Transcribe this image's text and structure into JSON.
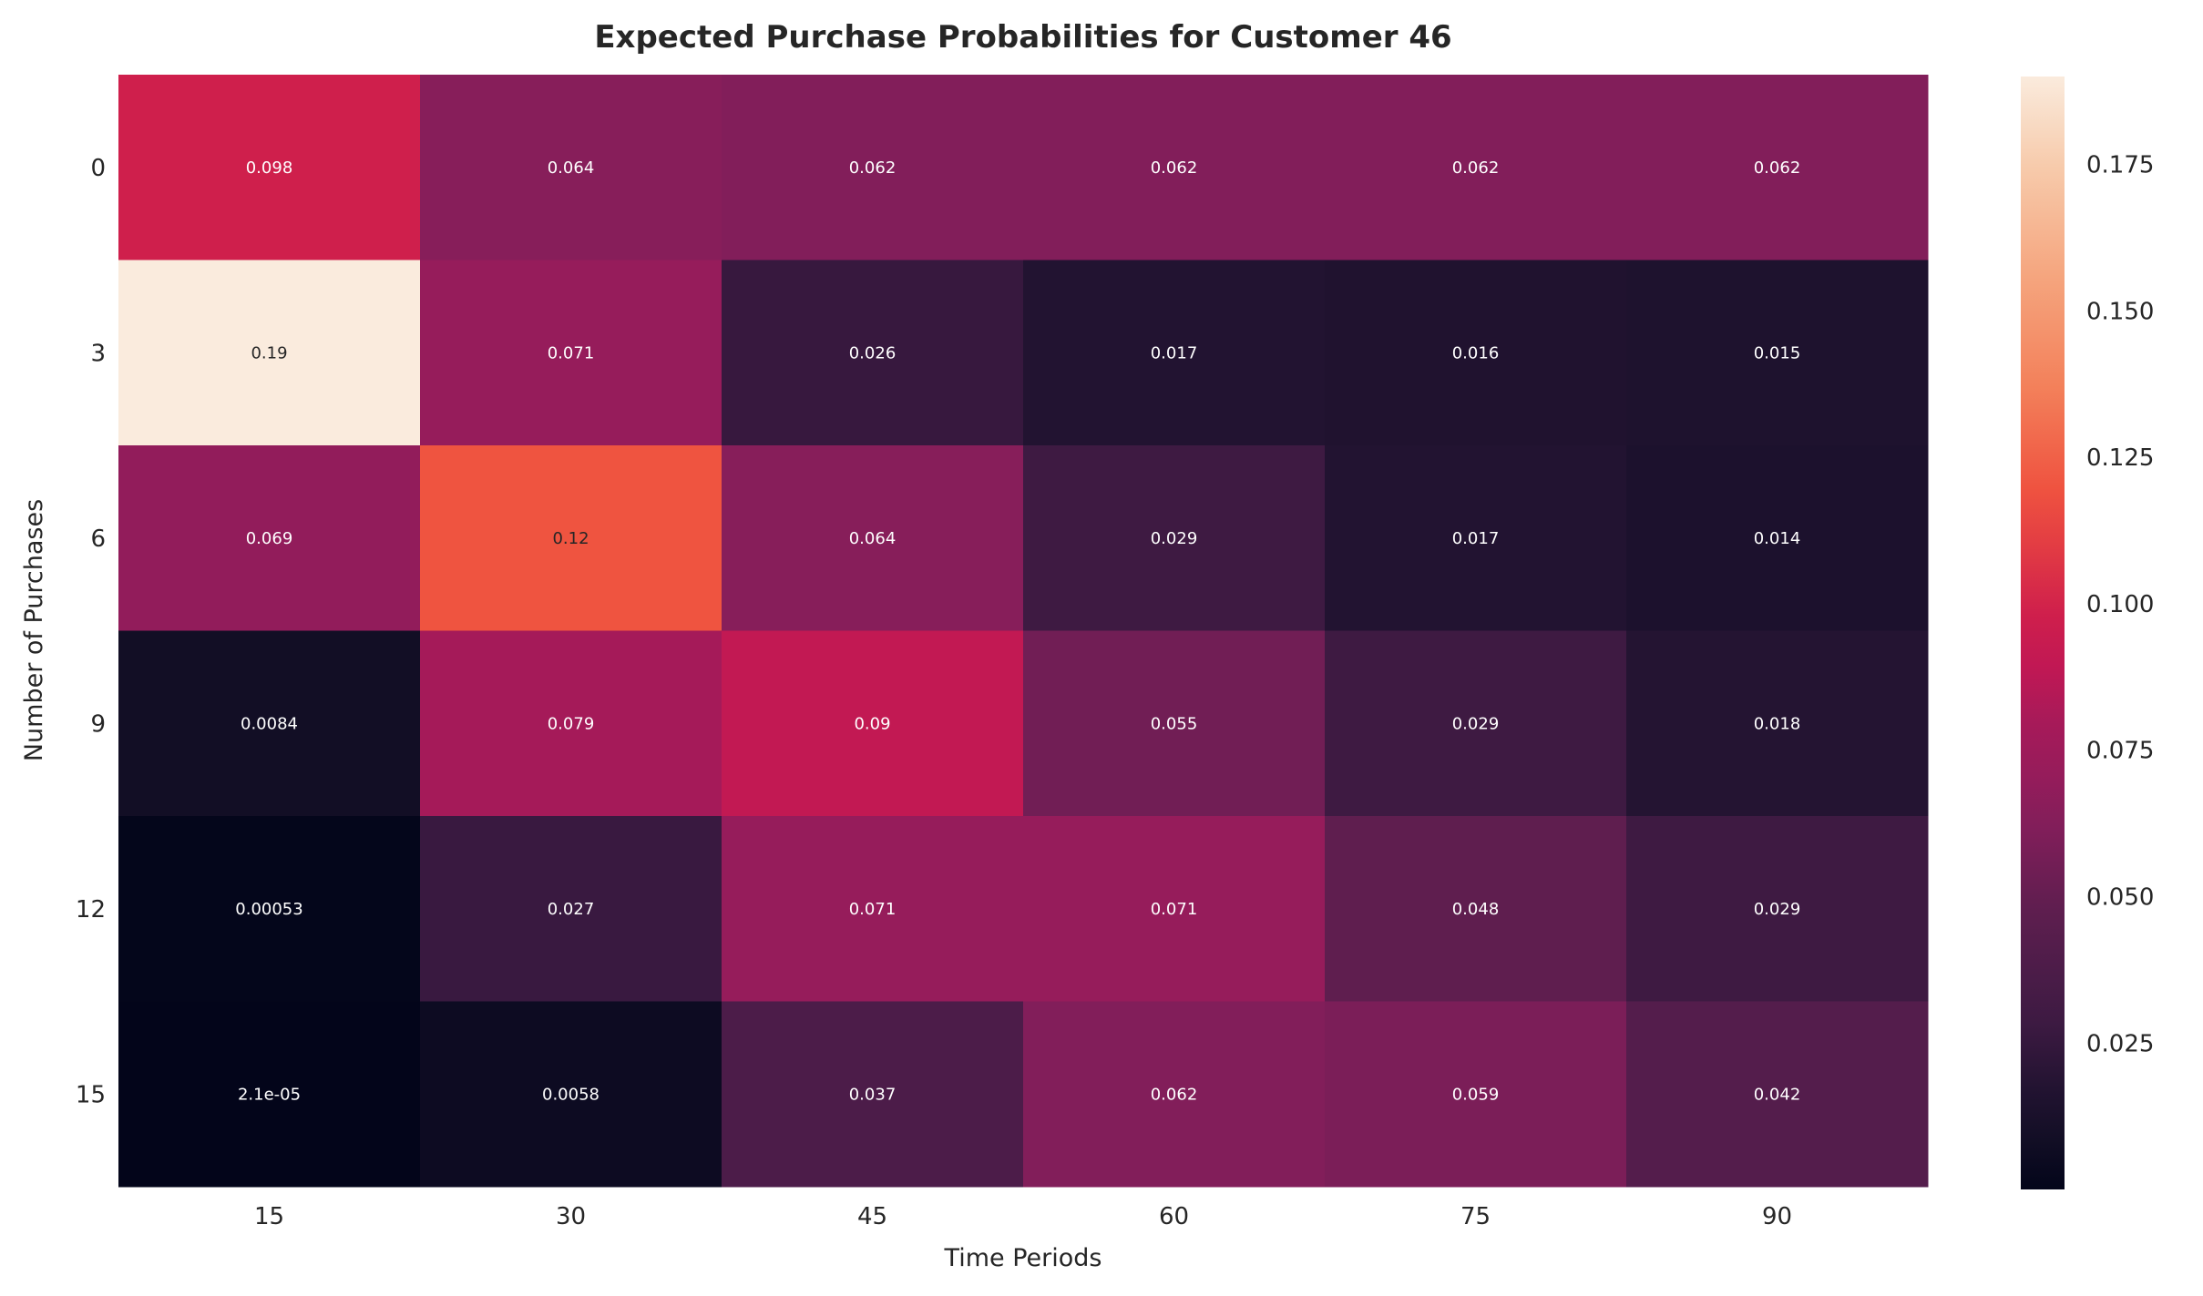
{
  "chart_data": {
    "type": "heatmap",
    "title": "Expected Purchase Probabilities for Customer 46",
    "xlabel": "Time Periods",
    "ylabel": "Number of Purchases",
    "x_categories": [
      "15",
      "30",
      "45",
      "60",
      "75",
      "90"
    ],
    "y_categories": [
      "0",
      "3",
      "6",
      "9",
      "12",
      "15"
    ],
    "values": [
      [
        0.098,
        0.064,
        0.062,
        0.062,
        0.062,
        0.062
      ],
      [
        0.19,
        0.071,
        0.026,
        0.017,
        0.016,
        0.015
      ],
      [
        0.069,
        0.12,
        0.064,
        0.029,
        0.017,
        0.014
      ],
      [
        0.0084,
        0.079,
        0.09,
        0.055,
        0.029,
        0.018
      ],
      [
        0.00053,
        0.027,
        0.071,
        0.071,
        0.048,
        0.029
      ],
      [
        2.1e-05,
        0.0058,
        0.037,
        0.062,
        0.059,
        0.042
      ]
    ],
    "annotations": [
      [
        "0.098",
        "0.064",
        "0.062",
        "0.062",
        "0.062",
        "0.062"
      ],
      [
        "0.19",
        "0.071",
        "0.026",
        "0.017",
        "0.016",
        "0.015"
      ],
      [
        "0.069",
        "0.12",
        "0.064",
        "0.029",
        "0.017",
        "0.014"
      ],
      [
        "0.0084",
        "0.079",
        "0.09",
        "0.055",
        "0.029",
        "0.018"
      ],
      [
        "0.00053",
        "0.027",
        "0.071",
        "0.071",
        "0.048",
        "0.029"
      ],
      [
        "2.1e-05",
        "0.0058",
        "0.037",
        "0.062",
        "0.059",
        "0.042"
      ]
    ],
    "colormap": "rocket",
    "colorbar": {
      "range": [
        2.1e-05,
        0.19
      ],
      "ticks": [
        "0.025",
        "0.050",
        "0.075",
        "0.100",
        "0.125",
        "0.150",
        "0.175"
      ]
    },
    "grid": false,
    "legend": "colorbar-right"
  }
}
